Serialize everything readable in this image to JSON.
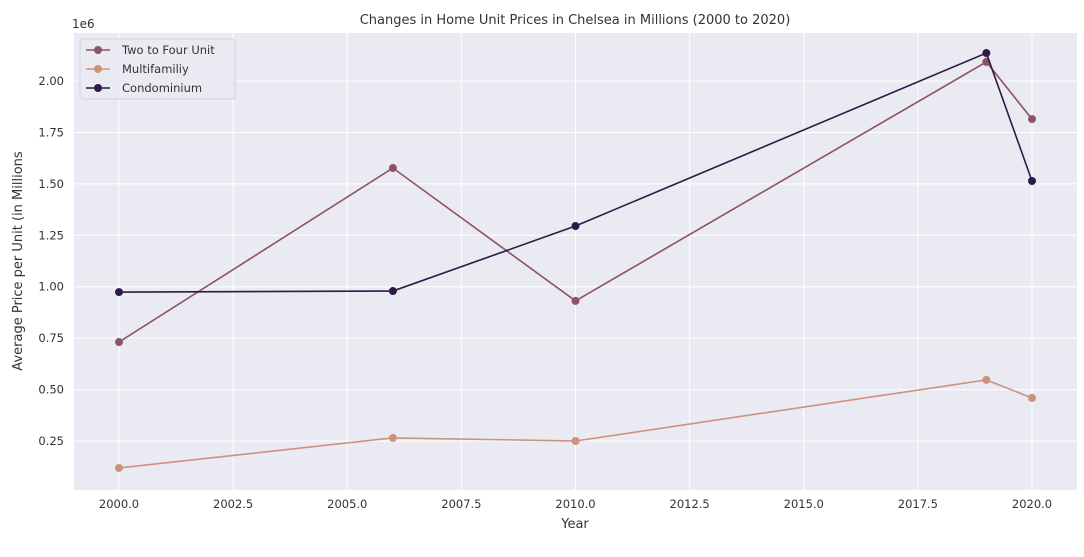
{
  "chart_data": {
    "type": "line",
    "title": "Changes in Home Unit Prices in Chelsea in Millions (2000 to 2020)",
    "xlabel": "Year",
    "ylabel": "Average Price per Unit (in Millions",
    "y_offset_label": "1e6",
    "x": [
      2000,
      2006,
      2010,
      2019,
      2020
    ],
    "xlim": [
      1999,
      2021
    ],
    "ylim": [
      0.0,
      2.23
    ],
    "xticks": [
      2000,
      2002.5,
      2005,
      2007.5,
      2010,
      2012.5,
      2015,
      2017.5,
      2020
    ],
    "xtick_labels": [
      "2000.0",
      "2002.5",
      "2005.0",
      "2007.5",
      "2010.0",
      "2012.5",
      "2015.0",
      "2017.5",
      "2020.0"
    ],
    "yticks": [
      0.25,
      0.5,
      0.75,
      1.0,
      1.25,
      1.5,
      1.75,
      2.0
    ],
    "ytick_labels": [
      "0.25",
      "0.50",
      "0.75",
      "1.00",
      "1.25",
      "1.50",
      "1.75",
      "2.00"
    ],
    "grid": true,
    "background": "#eaeaf2",
    "legend_position": "top-left",
    "series": [
      {
        "name": "Two to Four Unit",
        "color": "#8c5266",
        "values": [
          0.731,
          1.577,
          0.931,
          2.093,
          1.815
        ]
      },
      {
        "name": "Multifamiliy",
        "color": "#cc927c",
        "values": [
          0.119,
          0.265,
          0.25,
          0.547,
          0.459
        ]
      },
      {
        "name": "Condominium",
        "color": "#2e1a45",
        "values": [
          0.974,
          0.979,
          1.295,
          2.136,
          1.514
        ]
      }
    ]
  }
}
